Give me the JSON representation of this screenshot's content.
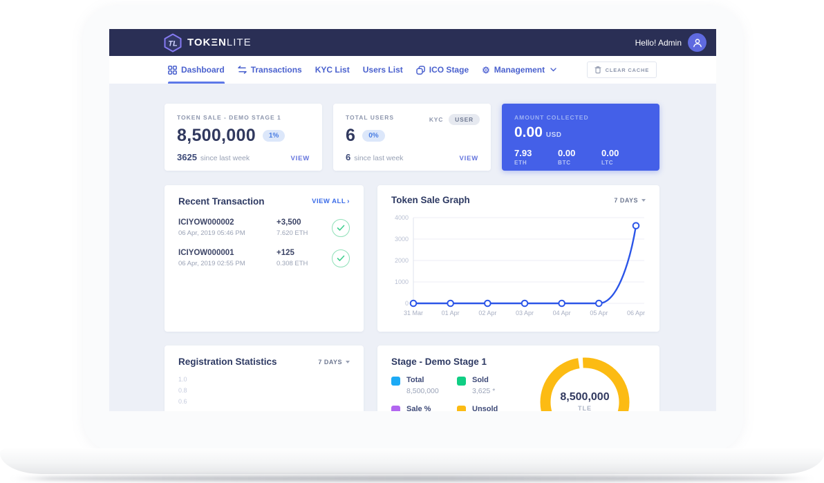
{
  "brand": {
    "name_main": "TOKΞN",
    "name_light": "LITE"
  },
  "header": {
    "greeting": "Hello! Admin"
  },
  "nav": {
    "items": [
      {
        "label": "Dashboard",
        "icon": "grid-icon",
        "active": true
      },
      {
        "label": "Transactions",
        "icon": "swap-arrows-icon",
        "active": false
      },
      {
        "label": "KYC List",
        "icon": "",
        "active": false
      },
      {
        "label": "Users List",
        "icon": "",
        "active": false
      },
      {
        "label": "ICO Stage",
        "icon": "coins-icon",
        "active": false
      },
      {
        "label": "Management",
        "icon": "gear-icon",
        "active": false,
        "has_dropdown": true
      }
    ],
    "clear_cache_label": "CLEAR CACHE"
  },
  "stats": {
    "token_sale": {
      "label": "TOKEN SALE - DEMO STAGE 1",
      "value": "8,500,000",
      "badge": "1%",
      "delta": "3625",
      "delta_note": "since last week",
      "link": "VIEW"
    },
    "total_users": {
      "label": "TOTAL USERS",
      "toggle_kyc": "KYC",
      "toggle_user": "USER",
      "value": "6",
      "badge": "0%",
      "delta": "6",
      "delta_note": "since last week",
      "link": "VIEW"
    },
    "amount_collected": {
      "label": "AMOUNT COLLECTED",
      "value": "0.00",
      "unit": "USD",
      "coins": [
        {
          "value": "7.93",
          "unit": "ETH"
        },
        {
          "value": "0.00",
          "unit": "BTC"
        },
        {
          "value": "0.00",
          "unit": "LTC"
        }
      ]
    }
  },
  "transactions": {
    "title": "Recent Transaction",
    "view_all": "VIEW ALL",
    "rows": [
      {
        "id": "ICIYOW000002",
        "date": "06 Apr, 2019 05:46 PM",
        "amount": "+3,500",
        "crypto": "7.620 ETH",
        "status": "confirmed"
      },
      {
        "id": "ICIYOW000001",
        "date": "06 Apr, 2019 02:55 PM",
        "amount": "+125",
        "crypto": "0.308 ETH",
        "status": "confirmed"
      }
    ]
  },
  "chart_data": [
    {
      "type": "line",
      "title": "Token Sale Graph",
      "period": "7 DAYS",
      "x": [
        "31 Mar",
        "01 Apr",
        "02 Apr",
        "03 Apr",
        "04 Apr",
        "05 Apr",
        "06 Apr"
      ],
      "values": [
        0,
        0,
        0,
        0,
        0,
        0,
        3625
      ],
      "ylim": [
        0,
        4000
      ],
      "yticks": [
        0,
        1000,
        2000,
        3000,
        4000
      ],
      "line_color": "#2b55e8",
      "grid": true,
      "legend": "none"
    },
    {
      "type": "line",
      "title": "Registration Statistics",
      "period": "7 DAYS",
      "yticks_visible": [
        "1.0",
        "0.8",
        "0.6"
      ]
    },
    {
      "type": "gauge-donut",
      "title": "Stage - Demo Stage 1",
      "center_value": "8,500,000",
      "center_unit": "TLE",
      "arc_color": "#fcbb13",
      "series": [
        {
          "name": "Total",
          "value": "8,500,000",
          "color": "#1caaf5"
        },
        {
          "name": "Sold",
          "value": "3,625 *",
          "color": "#10ce84"
        },
        {
          "name": "Sale %",
          "value": "",
          "color": "#b266f0"
        },
        {
          "name": "Unsold",
          "value": "",
          "color": "#fcbb13"
        }
      ]
    }
  ],
  "colors": {
    "header_navy": "#2a2f55",
    "accent_blue": "#2b55e8",
    "card_blue": "#4460e8",
    "success_green": "#3ecf8e",
    "gauge_yellow": "#fcbb13",
    "content_bg": "#edf0f7"
  }
}
